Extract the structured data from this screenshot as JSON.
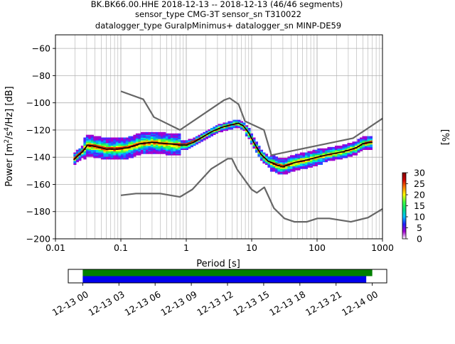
{
  "header": {
    "line1": "BK.BK66.00.HHE   2018-12-13 -- 2018-12-13  (46/46 segments)",
    "line2": "sensor_type CMG-3T sensor_sn T310022",
    "line3": "datalogger_type GuralpMinimus+ datalogger_sn MINP-DE59"
  },
  "chart_data": [
    {
      "type": "heatmap",
      "title": "",
      "xlabel": "Period [s]",
      "ylabel": "Power [m²/s⁴/Hz] [dB]",
      "xscale": "log",
      "xlim": [
        0.01,
        1000
      ],
      "ylim": [
        -200,
        -50
      ],
      "xticks": [
        0.01,
        0.1,
        1,
        10,
        100,
        1000
      ],
      "xtick_labels": [
        "0.01",
        "0.1",
        "1",
        "10",
        "100",
        "1000"
      ],
      "yticks": [
        -200,
        -180,
        -160,
        -140,
        -120,
        -100,
        -80,
        -60
      ],
      "ytick_labels": [
        "−200",
        "−180",
        "−160",
        "−140",
        "−120",
        "−100",
        "−80",
        "−60"
      ],
      "grid": true,
      "colorbar": {
        "label": "[%]",
        "range": [
          0,
          30
        ],
        "ticks": [
          0,
          5,
          10,
          15,
          20,
          25,
          30
        ],
        "tick_labels": [
          "0",
          "5",
          "10",
          "15",
          "20",
          "25",
          "30"
        ],
        "colors": [
          "#ffffff",
          "#a000d0",
          "#2020ff",
          "#00c0ff",
          "#00e080",
          "#40ff40",
          "#ffff00",
          "#ff8000",
          "#d00000",
          "#800000"
        ]
      },
      "series": [
        {
          "kind": "median",
          "color": "#000000",
          "points": [
            [
              0.019,
              -142
            ],
            [
              0.022,
              -139
            ],
            [
              0.026,
              -136
            ],
            [
              0.031,
              -131
            ],
            [
              0.04,
              -132
            ],
            [
              0.06,
              -134
            ],
            [
              0.09,
              -134
            ],
            [
              0.13,
              -133
            ],
            [
              0.2,
              -130
            ],
            [
              0.3,
              -129
            ],
            [
              0.5,
              -130
            ],
            [
              0.8,
              -131
            ],
            [
              1.0,
              -131
            ],
            [
              1.3,
              -129
            ],
            [
              1.8,
              -125
            ],
            [
              2.5,
              -121
            ],
            [
              3.5,
              -118
            ],
            [
              5,
              -116
            ],
            [
              6.3,
              -115
            ],
            [
              7.5,
              -117
            ],
            [
              9,
              -122
            ],
            [
              11,
              -130
            ],
            [
              14,
              -138
            ],
            [
              18,
              -143
            ],
            [
              25,
              -146
            ],
            [
              30,
              -147
            ],
            [
              45,
              -144
            ],
            [
              70,
              -142
            ],
            [
              100,
              -140
            ],
            [
              150,
              -138
            ],
            [
              250,
              -136
            ],
            [
              400,
              -133
            ],
            [
              500,
              -130
            ],
            [
              700,
              -129
            ]
          ]
        },
        {
          "kind": "mean",
          "color": "#d00000",
          "points": [
            [
              0.019,
              -141
            ],
            [
              0.022,
              -138
            ],
            [
              0.026,
              -135
            ],
            [
              0.031,
              -131
            ],
            [
              0.04,
              -131
            ],
            [
              0.06,
              -133
            ],
            [
              0.09,
              -133
            ],
            [
              0.13,
              -132
            ],
            [
              0.2,
              -130
            ],
            [
              0.3,
              -129
            ],
            [
              0.5,
              -130
            ],
            [
              0.8,
              -130
            ],
            [
              1.0,
              -130
            ],
            [
              1.3,
              -128
            ],
            [
              1.8,
              -125
            ],
            [
              2.5,
              -121
            ],
            [
              3.5,
              -118
            ],
            [
              5,
              -116
            ],
            [
              6.3,
              -115
            ],
            [
              7.5,
              -117
            ],
            [
              9,
              -122
            ],
            [
              11,
              -130
            ],
            [
              14,
              -138
            ],
            [
              18,
              -143
            ],
            [
              25,
              -145
            ],
            [
              30,
              -146
            ],
            [
              45,
              -144
            ],
            [
              70,
              -142
            ],
            [
              100,
              -140
            ],
            [
              150,
              -138
            ],
            [
              250,
              -136
            ],
            [
              400,
              -133
            ],
            [
              500,
              -130
            ],
            [
              700,
              -128
            ]
          ]
        },
        {
          "kind": "nhnm",
          "color": "#666666",
          "points": [
            [
              0.1,
              -91.5
            ],
            [
              0.22,
              -97.4
            ],
            [
              0.32,
              -110.5
            ],
            [
              0.8,
              -120
            ],
            [
              3.8,
              -98
            ],
            [
              4.6,
              -96.5
            ],
            [
              6.3,
              -101
            ],
            [
              7.9,
              -113.5
            ],
            [
              15.4,
              -120
            ],
            [
              20,
              -138.5
            ],
            [
              354.8,
              -126
            ],
            [
              1000,
              -111.5
            ]
          ]
        },
        {
          "kind": "nlnm",
          "color": "#666666",
          "points": [
            [
              0.1,
              -168
            ],
            [
              0.17,
              -166.7
            ],
            [
              0.4,
              -166.7
            ],
            [
              0.8,
              -169.2
            ],
            [
              1.24,
              -163.7
            ],
            [
              2.4,
              -148.6
            ],
            [
              4.3,
              -141.1
            ],
            [
              5,
              -141.1
            ],
            [
              6,
              -149
            ],
            [
              10,
              -163.8
            ],
            [
              12,
              -166.2
            ],
            [
              15.6,
              -162.1
            ],
            [
              21.9,
              -177.5
            ],
            [
              31.6,
              -185
            ],
            [
              45,
              -187.5
            ],
            [
              70,
              -187.5
            ],
            [
              101,
              -185
            ],
            [
              154,
              -185
            ],
            [
              328,
              -187.5
            ],
            [
              600,
              -184.4
            ],
            [
              1000,
              -178
            ]
          ]
        }
      ]
    },
    {
      "type": "timeline",
      "tick_labels": [
        "12-13 00",
        "12-13 03",
        "12-13 06",
        "12-13 09",
        "12-13 12",
        "12-13 15",
        "12-13 18",
        "12-13 21",
        "12-14 00"
      ],
      "tick_hours": [
        0,
        3,
        6,
        9,
        12,
        15,
        18,
        21,
        24
      ],
      "xlim_hours": [
        -1.2,
        25.2
      ],
      "bars": [
        {
          "name": "data",
          "color": "#008000",
          "start_hour": 0,
          "end_hour": 24
        },
        {
          "name": "psd",
          "color": "#0000ee",
          "start_hour": 0,
          "end_hour": 23.5
        }
      ]
    }
  ]
}
